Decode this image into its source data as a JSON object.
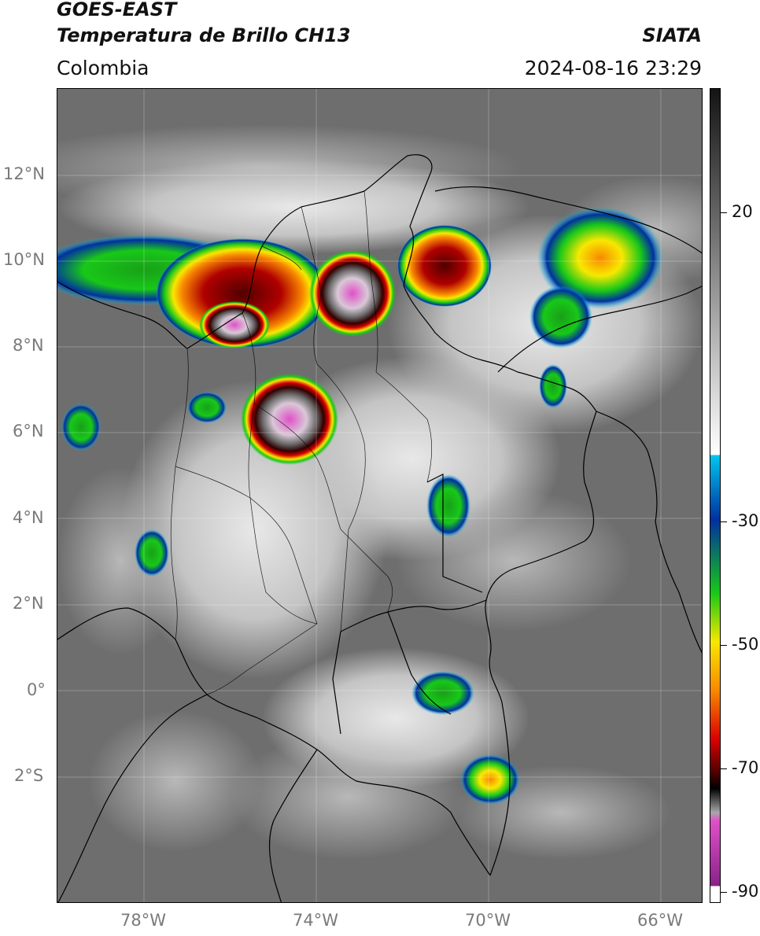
{
  "header": {
    "satellite": "GOES-EAST",
    "product": "Temperatura de Brillo CH13",
    "region": "Colombia",
    "organization": "SIATA",
    "datetime": "2024-08-16 23:29"
  },
  "map": {
    "lat_labels": [
      "12°N",
      "10°N",
      "8°N",
      "6°N",
      "4°N",
      "2°N",
      "0°",
      "2°S"
    ],
    "lon_labels": [
      "78°W",
      "74°W",
      "70°W",
      "66°W"
    ],
    "extent": {
      "lon_min": -80,
      "lon_max": -65,
      "lat_min": -5,
      "lat_max": 14
    },
    "features": [
      "coastline",
      "country-borders",
      "department-borders",
      "lat-lon-grid"
    ],
    "cold_cloud_clusters": [
      {
        "name": "cluster-northern-colombia",
        "lon": -75.5,
        "lat": 9.2,
        "min_temp": -80
      },
      {
        "name": "cluster-magdalena",
        "lon": -73.3,
        "lat": 9.5,
        "min_temp": -88
      },
      {
        "name": "cluster-maracaibo",
        "lon": -71.1,
        "lat": 10.0,
        "min_temp": -72
      },
      {
        "name": "cluster-venezuela-north",
        "lon": -67.8,
        "lat": 10.3,
        "min_temp": -58
      },
      {
        "name": "cluster-antioquia",
        "lon": -74.3,
        "lat": 6.4,
        "min_temp": -88
      },
      {
        "name": "cluster-caqueta",
        "lon": -70.7,
        "lat": 0.0,
        "min_temp": -45
      },
      {
        "name": "cluster-amazonas",
        "lon": -70.1,
        "lat": -2.1,
        "min_temp": -58
      }
    ]
  },
  "colorbar": {
    "labels": [
      "20",
      "-30",
      "-50",
      "-70",
      "-90"
    ],
    "unit_range": [
      -92,
      40
    ],
    "colors": {
      "warm_gray_top": "#141414",
      "warm_gray_bottom": "#ffffff",
      "cyan": "#00c8ee",
      "blue": "#0030a0",
      "green": "#18c818",
      "yellow": "#f8e800",
      "orange": "#f88800",
      "red": "#d80000",
      "dark_red": "#500000",
      "black": "#000000",
      "pink": "#e050c8",
      "purple": "#882288"
    }
  }
}
